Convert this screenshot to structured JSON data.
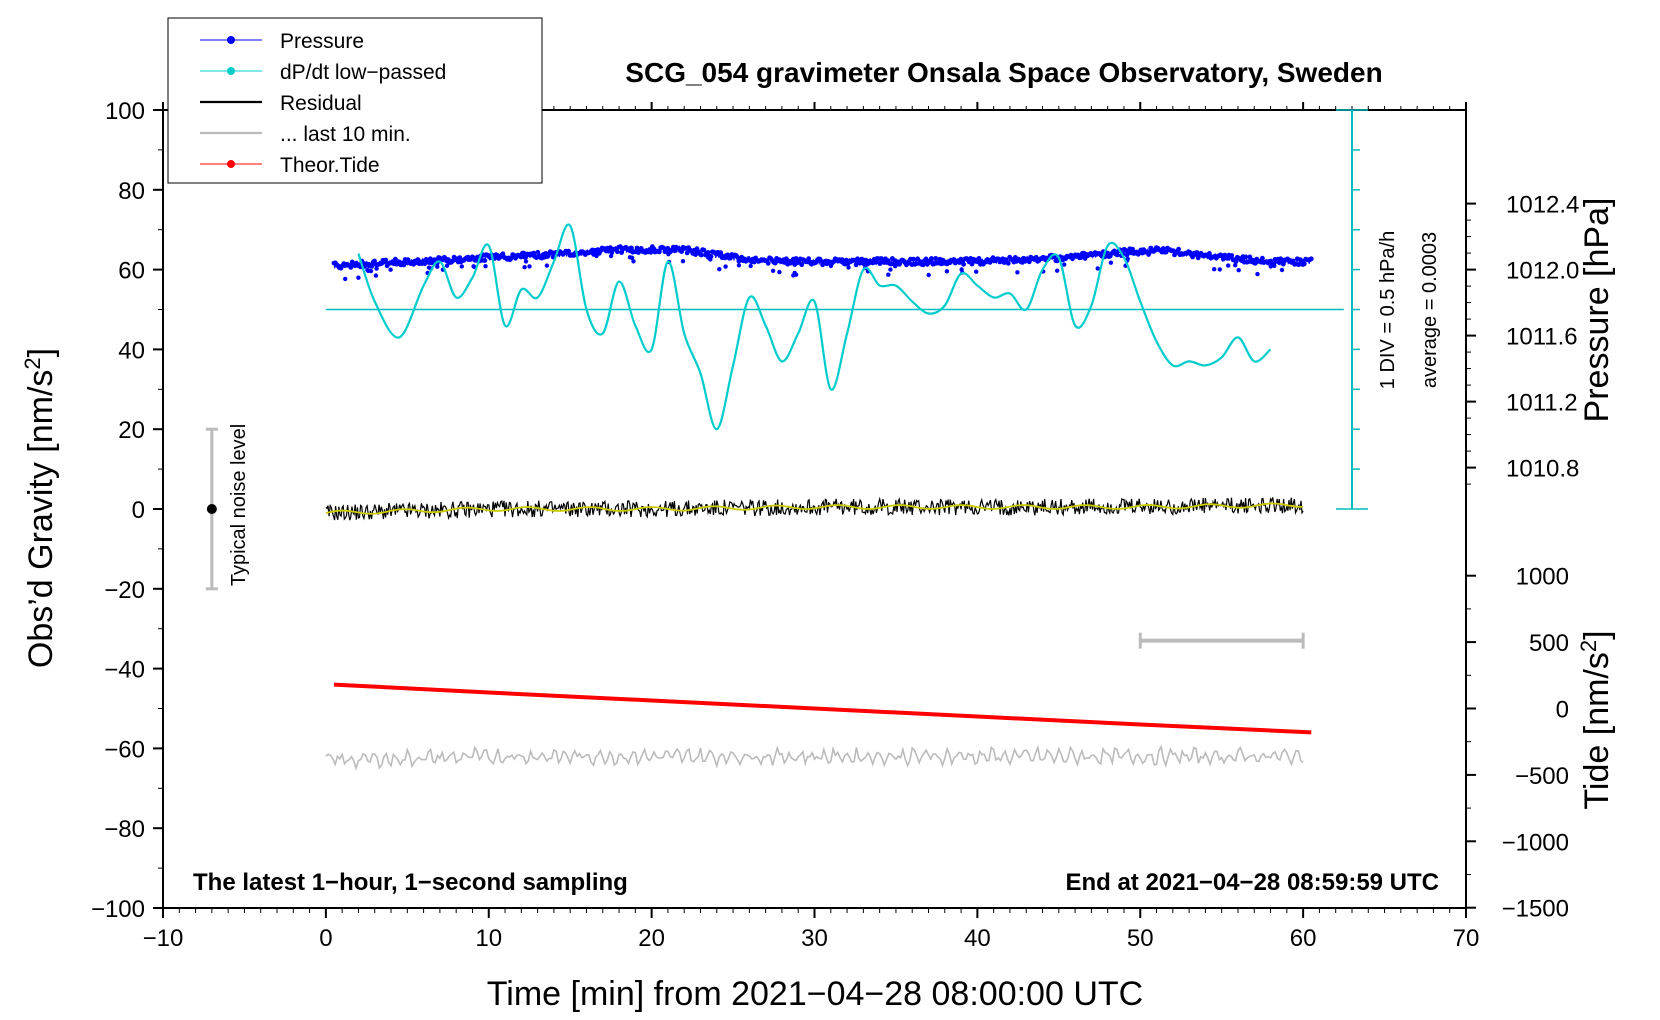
{
  "chart_data": {
    "type": "line",
    "title": "SCG_054 gravimeter Onsala Space Observatory, Sweden",
    "xlabel": "Time [min] from 2021−04−28 08:00:00 UTC",
    "ylabel_main": "Obs’d Gravity [nm/s",
    "ylabel_main_sup": "2",
    "ylabel_main_close": "]",
    "ylabel_pressure": "Pressure [hPa]",
    "ylabel_tide": "Tide [nm/s",
    "ylabel_tide_sup": "2",
    "ylabel_tide_close": "]",
    "xlim": [
      -10,
      70
    ],
    "ylim": [
      -100,
      100
    ],
    "x_ticks": [
      "−10",
      "0",
      "10",
      "20",
      "30",
      "40",
      "50",
      "60",
      "70"
    ],
    "x_tick_values": [
      -10,
      0,
      10,
      20,
      30,
      40,
      50,
      60,
      70
    ],
    "y_ticks": [
      "100",
      "80",
      "60",
      "40",
      "20",
      "0",
      "−20",
      "−40",
      "−60",
      "−80",
      "−100"
    ],
    "y_tick_values": [
      100,
      80,
      60,
      40,
      20,
      0,
      -20,
      -40,
      -60,
      -80,
      -100
    ],
    "pressure_ticks": [
      "1012.4",
      "1012.0",
      "1011.6",
      "1011.2",
      "1010.8"
    ],
    "pressure_tick_values": [
      1012.4,
      1012.0,
      1011.6,
      1011.2,
      1010.8
    ],
    "tide_ticks": [
      "1000",
      "500",
      "0",
      "−500",
      "−1000",
      "−1500"
    ],
    "tide_tick_values": [
      1000,
      500,
      0,
      -500,
      -1000,
      -1500
    ],
    "legend": {
      "position": "top-left",
      "entries": [
        {
          "label": "Pressure",
          "color": "#0000ff",
          "marker": true
        },
        {
          "label": "dP/dt low−passed",
          "color": "#00cccc",
          "marker": true
        },
        {
          "label": "Residual",
          "color": "#000000",
          "marker": false
        },
        {
          "label": "... last 10 min.",
          "color": "#bbbbbb",
          "marker": false
        },
        {
          "label": "Theor.Tide",
          "color": "#ff0000",
          "marker": true
        }
      ]
    },
    "annotations": {
      "bottom_left": "The latest 1−hour, 1−second sampling",
      "bottom_right": "End at 2021−04−28 08:59:59 UTC",
      "noise_label": "Typical noise level",
      "noise_range": [
        -20,
        20
      ],
      "noise_x": -7,
      "dpdt_scale": "1 DIV = 0.5 hPa/h",
      "dpdt_average": "average = 0.0003",
      "dpdt_zero_level": 50,
      "dpdt_scale_x": 63,
      "dpdt_scale_range": [
        0,
        100
      ],
      "last10_bar_x": [
        50,
        60
      ],
      "last10_bar_y": -33
    },
    "series": [
      {
        "name": "Pressure",
        "color": "#0000ff",
        "x": [
          0.5,
          5,
          10,
          15,
          18,
          22,
          25,
          28,
          32,
          36,
          40,
          45,
          48,
          51,
          55,
          58,
          60.5
        ],
        "y": [
          61,
          62,
          63,
          64,
          65,
          65,
          63,
          62,
          62,
          62,
          62,
          63,
          64,
          65,
          63,
          62,
          62
        ]
      },
      {
        "name": "dP/dt low−passed",
        "color": "#00cccc",
        "x": [
          2,
          3,
          4.5,
          6,
          7,
          8,
          9,
          10,
          11,
          12,
          13,
          14,
          15,
          16,
          17,
          18,
          19,
          20,
          21,
          22,
          23,
          24,
          25,
          26,
          27,
          28,
          29,
          30,
          31,
          32,
          33,
          34,
          35,
          36,
          37,
          38,
          39,
          40,
          41,
          42,
          43,
          44,
          45,
          46,
          47,
          48,
          49,
          50,
          51,
          52,
          53,
          54,
          55,
          56,
          57,
          58
        ],
        "y": [
          64,
          52,
          43,
          56,
          62,
          53,
          58,
          66,
          46,
          55,
          53,
          62,
          71,
          50,
          44,
          57,
          46,
          40,
          62,
          44,
          34,
          20,
          36,
          53,
          46,
          37,
          44,
          52,
          30,
          44,
          60,
          56,
          56,
          52,
          49,
          51,
          59,
          56,
          53,
          54,
          50,
          60,
          63,
          46,
          51,
          66,
          63,
          52,
          42,
          36,
          37,
          36,
          38,
          43,
          37,
          40
        ]
      },
      {
        "name": "Residual",
        "color": "#000000",
        "x": [
          0,
          10,
          20,
          30,
          40,
          50,
          60
        ],
        "y": [
          -1,
          0,
          0,
          0.5,
          0.5,
          0.5,
          1
        ]
      },
      {
        "name": "... last 10 min.",
        "color": "#bbbbbb",
        "x": [
          0,
          10,
          20,
          30,
          40,
          50,
          60
        ],
        "y": [
          -63,
          -62,
          -62,
          -62,
          -62,
          -62,
          -62
        ]
      },
      {
        "name": "Theor.Tide",
        "color": "#ff0000",
        "x": [
          0.5,
          10,
          20,
          30,
          40,
          50,
          60.5
        ],
        "y": [
          -44,
          -46,
          -48,
          -50,
          -52,
          -54,
          -56
        ]
      }
    ]
  }
}
